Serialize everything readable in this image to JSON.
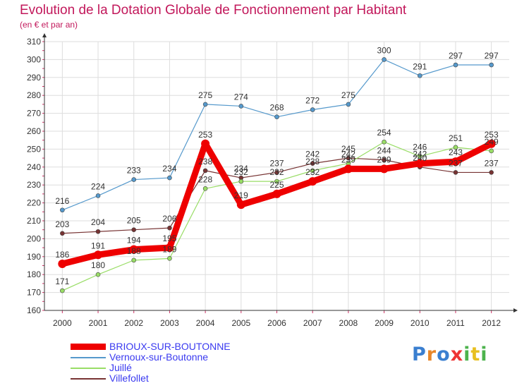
{
  "header": {
    "title": "Evolution de la Dotation Globale de Fonctionnement par Habitant",
    "subtitle": "(en € et par an)"
  },
  "brand": {
    "text": "Proxiti"
  },
  "chart_data": {
    "type": "line",
    "title": "Evolution de la Dotation Globale de Fonctionnement par Habitant",
    "subtitle": "(en € et par an)",
    "xlabel": "",
    "ylabel": "",
    "ylim": [
      160,
      310
    ],
    "yticks": [
      160,
      170,
      180,
      190,
      200,
      210,
      220,
      230,
      240,
      250,
      260,
      270,
      280,
      290,
      300,
      310
    ],
    "grid": true,
    "legend_position": "bottom-left",
    "categories": [
      "2000",
      "2001",
      "2002",
      "2003",
      "2004",
      "2005",
      "2006",
      "2007",
      "2008",
      "2009",
      "2010",
      "2011",
      "2012"
    ],
    "series": [
      {
        "name": "BRIOUX-SUR-BOUTONNE",
        "color": "#ee0000",
        "values": [
          186,
          191,
          194,
          195,
          253,
          219,
          225,
          232,
          239,
          239,
          242,
          243,
          253
        ]
      },
      {
        "name": "Vernoux-sur-Boutonne",
        "color": "#5599cc",
        "values": [
          216,
          224,
          233,
          234,
          275,
          274,
          268,
          272,
          275,
          300,
          291,
          297,
          297
        ]
      },
      {
        "name": "Juillé",
        "color": "#99dd66",
        "values": [
          171,
          180,
          188,
          189,
          228,
          232,
          232,
          238,
          242,
          254,
          246,
          251,
          249
        ]
      },
      {
        "name": "Villefollet",
        "color": "#773333",
        "values": [
          203,
          204,
          205,
          206,
          238,
          234,
          237,
          242,
          245,
          244,
          240,
          237,
          237
        ]
      }
    ]
  }
}
